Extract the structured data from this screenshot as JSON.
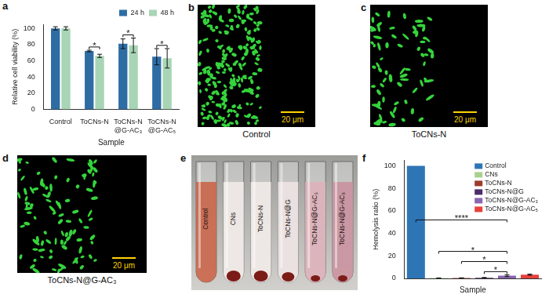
{
  "chart_data": [
    {
      "panel": "a",
      "type": "bar",
      "x_label": "Sample",
      "y_label": "Relative cell viability (%)",
      "categories": [
        "Control",
        "ToCNs-N",
        "ToCNs-N@G-AC₃",
        "ToCNs-N@G-AC₅"
      ],
      "series": [
        {
          "name": "24 h",
          "color": "#2e6da4",
          "values": [
            100,
            72,
            81,
            65
          ],
          "errors": [
            2,
            1,
            6,
            10
          ]
        },
        {
          "name": "48 h",
          "color": "#a8d5b5",
          "values": [
            100,
            66,
            79,
            63
          ],
          "errors": [
            2,
            2,
            9,
            12
          ]
        }
      ],
      "ylim": [
        0,
        105
      ],
      "yticks": [
        0,
        20,
        40,
        60,
        80,
        100
      ],
      "grid": false,
      "legend": "top",
      "significance": [
        {
          "category": "ToCNs-N",
          "y": 77,
          "label": "*"
        },
        {
          "category": "ToCNs-N@G-AC₃",
          "y": 92,
          "label": "*"
        },
        {
          "category": "ToCNs-N@G-AC₅",
          "y": 79,
          "label": "*"
        }
      ]
    },
    {
      "panel": "f",
      "type": "bar",
      "x_label": "Sample",
      "y_label": "Hemolysis ratio (%)",
      "categories": [
        "Control",
        "CNs",
        "ToCNs-N",
        "ToCNs-N@G",
        "ToCNs-N@G-AC₃",
        "ToCNs-N@G-AC₅"
      ],
      "values": [
        100,
        0.3,
        0.4,
        0.6,
        2.4,
        3.3
      ],
      "errors": [
        null,
        0.1,
        0.1,
        0.2,
        0.8,
        0.5
      ],
      "colors": [
        "#2e75b6",
        "#a9d18e",
        "#9e3b2c",
        "#4a2b6b",
        "#8a64b0",
        "#e8413a"
      ],
      "ylim": [
        0,
        105
      ],
      "yticks": [
        0,
        20,
        40,
        60,
        80,
        100
      ],
      "grid": false,
      "legend": "top-right",
      "tick_labels": "y",
      "significance": [
        {
          "from": "Control",
          "to": "ToCNs-N@G-AC₃",
          "y": 52,
          "label": "****"
        },
        {
          "from": "CNs",
          "to": "ToCNs-N@G-AC₃",
          "y": 24,
          "label": "*"
        },
        {
          "from": "ToCNs-N",
          "to": "ToCNs-N@G-AC₃",
          "y": 15,
          "label": "*"
        },
        {
          "from": "ToCNs-N@G",
          "to": "ToCNs-N@G-AC₃",
          "y": 6,
          "label": "*"
        }
      ]
    }
  ],
  "micrographs": [
    {
      "panel": "b",
      "caption": "Control",
      "scale_bar": "20 μm"
    },
    {
      "panel": "c",
      "caption": "ToCNs-N",
      "scale_bar": "20 μm"
    },
    {
      "panel": "d",
      "caption": "ToCNs-N@G-AC₃",
      "scale_bar": "20 μm"
    }
  ],
  "photo": {
    "panel": "e",
    "tubes": [
      "Control",
      "CNs",
      "ToCNs-N",
      "ToCNs-N@G",
      "ToCNs-N@G-AC₃",
      "ToCNs-N@G-AC₅"
    ]
  }
}
